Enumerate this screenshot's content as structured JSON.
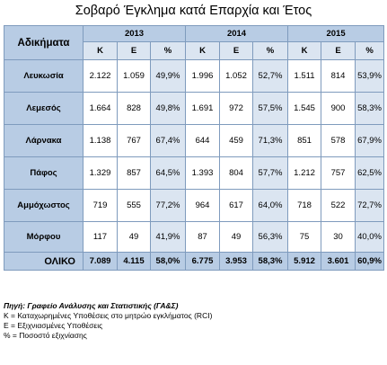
{
  "title": "Σοβαρό Έγκλημα κατά Επαρχία και Έτος",
  "table": {
    "corner_label": "Αδικήματα",
    "years": [
      "2013",
      "2014",
      "2015"
    ],
    "subheaders": [
      "Κ",
      "Ε",
      "%"
    ],
    "rows": [
      {
        "district": "Λευκωσία",
        "values": [
          "2.122",
          "1.059",
          "49,9%",
          "1.996",
          "1.052",
          "52,7%",
          "1.511",
          "814",
          "53,9%"
        ]
      },
      {
        "district": "Λεμεσός",
        "values": [
          "1.664",
          "828",
          "49,8%",
          "1.691",
          "972",
          "57,5%",
          "1.545",
          "900",
          "58,3%"
        ]
      },
      {
        "district": "Λάρνακα",
        "values": [
          "1.138",
          "767",
          "67,4%",
          "644",
          "459",
          "71,3%",
          "851",
          "578",
          "67,9%"
        ]
      },
      {
        "district": "Πάφος",
        "values": [
          "1.329",
          "857",
          "64,5%",
          "1.393",
          "804",
          "57,7%",
          "1.212",
          "757",
          "62,5%"
        ]
      },
      {
        "district": "Αμμόχωστος",
        "values": [
          "719",
          "555",
          "77,2%",
          "964",
          "617",
          "64,0%",
          "718",
          "522",
          "72,7%"
        ]
      },
      {
        "district": "Μόρφου",
        "values": [
          "117",
          "49",
          "41,9%",
          "87",
          "49",
          "56,3%",
          "75",
          "30",
          "40,0%"
        ]
      }
    ],
    "total": {
      "label": "ΟΛΙΚΟ",
      "values": [
        "7.089",
        "4.115",
        "58,0%",
        "6.775",
        "3.953",
        "58,3%",
        "5.912",
        "3.601",
        "60,9%"
      ]
    }
  },
  "notes": {
    "source": "Πηγή: Γραφείο Ανάλυσης και Στατιστικής (ΓΑ&Σ)",
    "legend_k": "Κ = Καταχωρημένες Υποθέσεις στο μητρώο εγκλήματος (RCI)",
    "legend_e": "Ε =  Εξιχνιασμένες Υποθέσεις",
    "legend_pct": "% = Ποσοστό εξιχνίασης"
  }
}
